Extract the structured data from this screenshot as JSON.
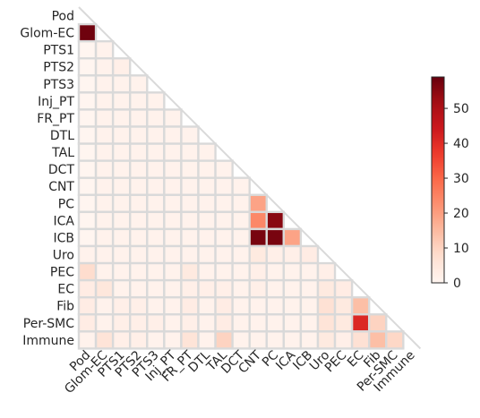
{
  "chart_data": {
    "type": "heatmap",
    "title": "",
    "xlabel": "",
    "ylabel": "",
    "layout": "lower-triangle",
    "labels": [
      "Pod",
      "Glom-EC",
      "PTS1",
      "PTS2",
      "PTS3",
      "Inj_PT",
      "FR_PT",
      "DTL",
      "TAL",
      "DCT",
      "CNT",
      "PC",
      "ICA",
      "ICB",
      "Uro",
      "PEC",
      "EC",
      "Fib",
      "Per-SMC",
      "Immune"
    ],
    "rows": [
      [],
      [
        58
      ],
      [
        0,
        1
      ],
      [
        0,
        1,
        2
      ],
      [
        0,
        1,
        1,
        1
      ],
      [
        0,
        1,
        1,
        1,
        1
      ],
      [
        0,
        1,
        1,
        1,
        1,
        1
      ],
      [
        0,
        1,
        1,
        1,
        1,
        1,
        1
      ],
      [
        0,
        1,
        1,
        1,
        1,
        1,
        1,
        1
      ],
      [
        0,
        1,
        1,
        1,
        1,
        1,
        1,
        1,
        1
      ],
      [
        0,
        1,
        1,
        1,
        1,
        1,
        1,
        1,
        1,
        1
      ],
      [
        0,
        1,
        1,
        1,
        1,
        1,
        1,
        1,
        1,
        1,
        19
      ],
      [
        0,
        1,
        1,
        1,
        1,
        1,
        1,
        1,
        1,
        1,
        24,
        55
      ],
      [
        0,
        1,
        1,
        1,
        1,
        1,
        1,
        1,
        1,
        1,
        57,
        57,
        19
      ],
      [
        1,
        1,
        1,
        1,
        1,
        1,
        1,
        1,
        1,
        1,
        4,
        2,
        2,
        3
      ],
      [
        8,
        1,
        1,
        1,
        1,
        1,
        4,
        1,
        1,
        1,
        2,
        1,
        1,
        1,
        2
      ],
      [
        3,
        5,
        1,
        1,
        1,
        1,
        2,
        2,
        2,
        1,
        2,
        1,
        1,
        1,
        4,
        3
      ],
      [
        3,
        1,
        2,
        2,
        1,
        1,
        3,
        1,
        3,
        1,
        1,
        1,
        1,
        1,
        7,
        4,
        14
      ],
      [
        3,
        1,
        2,
        2,
        2,
        1,
        2,
        1,
        3,
        1,
        1,
        1,
        1,
        1,
        6,
        4,
        41,
        10
      ],
      [
        1,
        6,
        2,
        2,
        1,
        1,
        6,
        1,
        10,
        1,
        1,
        1,
        1,
        1,
        4,
        2,
        7,
        14,
        9
      ]
    ],
    "colorbar": {
      "min": 0,
      "max": 59,
      "ticks": [
        0,
        10,
        20,
        30,
        40,
        50
      ],
      "colormap": "Reds"
    },
    "grid_color": "#d9d9d9"
  }
}
